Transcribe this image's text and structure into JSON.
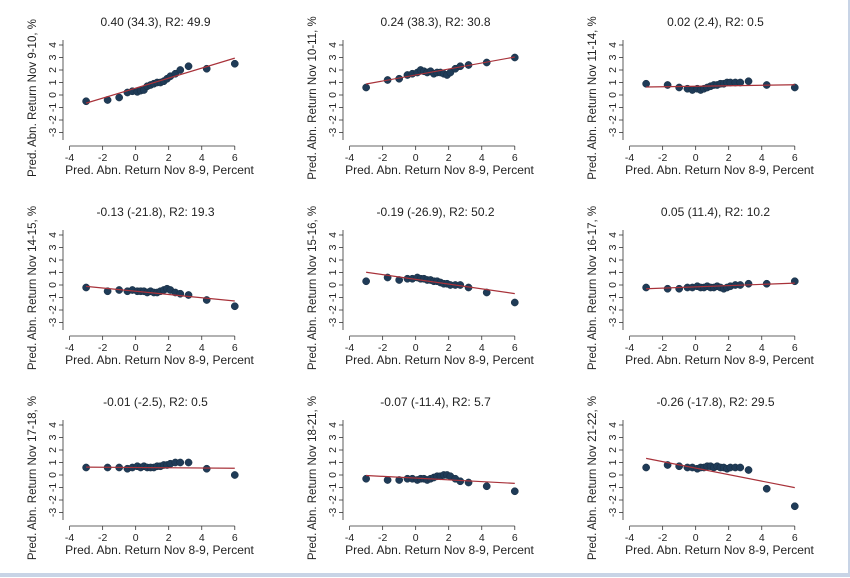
{
  "figure": {
    "xlabel": "Pred. Abn. Return Nov 8-9, Percent",
    "xticks": [
      -4,
      -2,
      0,
      2,
      4,
      6
    ],
    "yticks": [
      -3,
      -2,
      -1,
      0,
      1,
      2,
      3,
      4
    ],
    "xlim": [
      -4.4,
      6.8
    ],
    "ylim": [
      -3.6,
      4.4
    ],
    "colors": {
      "points": "#1f3b57",
      "fit_line": "#a8323a",
      "axes": "#333333"
    }
  },
  "chart_data": [
    {
      "type": "scatter",
      "title": "0.40 (34.3), R2: 49.9",
      "ylabel": "Pred. Abn. Return Nov 9-10, %",
      "fit": {
        "slope": 0.4,
        "intercept": 0.55
      },
      "x": [
        -3.0,
        -1.7,
        -1.0,
        -0.5,
        -0.2,
        0.1,
        0.3,
        0.5,
        0.7,
        0.9,
        1.1,
        1.3,
        1.5,
        1.7,
        1.9,
        2.1,
        2.4,
        2.7,
        3.2,
        4.3,
        6.0
      ],
      "y": [
        -0.5,
        -0.4,
        -0.2,
        0.2,
        0.3,
        0.25,
        0.35,
        0.4,
        0.7,
        0.8,
        0.9,
        1.0,
        1.0,
        1.1,
        1.3,
        1.5,
        1.7,
        2.0,
        2.3,
        2.1,
        2.5
      ]
    },
    {
      "type": "scatter",
      "title": "0.24 (38.3), R2: 30.8",
      "ylabel": "Pred. Abn. Return Nov 10-11, %",
      "fit": {
        "slope": 0.24,
        "intercept": 1.6
      },
      "x": [
        -3.0,
        -1.7,
        -1.0,
        -0.5,
        -0.2,
        0.1,
        0.3,
        0.5,
        0.7,
        0.9,
        1.1,
        1.3,
        1.5,
        1.7,
        1.9,
        2.1,
        2.4,
        2.7,
        3.2,
        4.3,
        6.0
      ],
      "y": [
        0.6,
        1.2,
        1.3,
        1.6,
        1.7,
        1.8,
        2.0,
        1.9,
        1.8,
        1.9,
        1.7,
        1.8,
        1.8,
        1.7,
        1.6,
        1.8,
        2.1,
        2.3,
        2.4,
        2.6,
        3.0
      ]
    },
    {
      "type": "scatter",
      "title": "0.02 (2.4), R2: 0.5",
      "ylabel": "Pred. Abn. Return Nov 11-14, %",
      "fit": {
        "slope": 0.02,
        "intercept": 0.7
      },
      "x": [
        -3.0,
        -1.7,
        -1.0,
        -0.5,
        -0.2,
        0.1,
        0.3,
        0.5,
        0.7,
        0.9,
        1.1,
        1.3,
        1.5,
        1.7,
        1.9,
        2.1,
        2.4,
        2.7,
        3.2,
        4.3,
        6.0
      ],
      "y": [
        0.9,
        0.8,
        0.6,
        0.5,
        0.4,
        0.5,
        0.4,
        0.5,
        0.6,
        0.7,
        0.8,
        0.8,
        0.9,
        0.9,
        1.0,
        1.0,
        1.0,
        1.0,
        1.1,
        0.8,
        0.6
      ]
    },
    {
      "type": "scatter",
      "title": "-0.13 (-21.8), R2: 19.3",
      "ylabel": "Pred. Abn. Return Nov 14-15, %",
      "fit": {
        "slope": -0.13,
        "intercept": -0.5
      },
      "x": [
        -3.0,
        -1.7,
        -1.0,
        -0.5,
        -0.2,
        0.1,
        0.3,
        0.5,
        0.7,
        0.9,
        1.1,
        1.3,
        1.5,
        1.7,
        1.9,
        2.1,
        2.4,
        2.7,
        3.2,
        4.3,
        6.0
      ],
      "y": [
        -0.2,
        -0.5,
        -0.4,
        -0.5,
        -0.4,
        -0.5,
        -0.5,
        -0.5,
        -0.6,
        -0.5,
        -0.6,
        -0.6,
        -0.5,
        -0.4,
        -0.3,
        -0.4,
        -0.6,
        -0.7,
        -0.8,
        -1.2,
        -1.7
      ]
    },
    {
      "type": "scatter",
      "title": "-0.19 (-26.9), R2: 50.2",
      "ylabel": "Pred. Abn. Return Nov 15-16, %",
      "fit": {
        "slope": -0.19,
        "intercept": 0.45
      },
      "x": [
        -3.0,
        -1.7,
        -1.0,
        -0.5,
        -0.2,
        0.1,
        0.3,
        0.5,
        0.7,
        0.9,
        1.1,
        1.3,
        1.5,
        1.7,
        1.9,
        2.1,
        2.4,
        2.7,
        3.2,
        4.3,
        6.0
      ],
      "y": [
        0.3,
        0.6,
        0.4,
        0.5,
        0.5,
        0.6,
        0.5,
        0.5,
        0.4,
        0.4,
        0.3,
        0.3,
        0.2,
        0.1,
        0.1,
        0.0,
        0.0,
        0.0,
        -0.2,
        -0.6,
        -1.4
      ]
    },
    {
      "type": "scatter",
      "title": "0.05 (11.4), R2: 10.2",
      "ylabel": "Pred. Abn. Return Nov 16-17, %",
      "fit": {
        "slope": 0.05,
        "intercept": -0.15
      },
      "x": [
        -3.0,
        -1.7,
        -1.0,
        -0.5,
        -0.2,
        0.1,
        0.3,
        0.5,
        0.7,
        0.9,
        1.1,
        1.3,
        1.5,
        1.7,
        1.9,
        2.1,
        2.4,
        2.7,
        3.2,
        4.3,
        6.0
      ],
      "y": [
        -0.2,
        -0.3,
        -0.3,
        -0.2,
        -0.2,
        -0.1,
        -0.2,
        -0.2,
        -0.1,
        -0.2,
        -0.2,
        -0.1,
        -0.2,
        -0.3,
        -0.2,
        -0.1,
        0.0,
        0.0,
        0.1,
        0.1,
        0.3
      ]
    },
    {
      "type": "scatter",
      "title": "-0.01 (-2.5), R2: 0.5",
      "ylabel": "Pred. Abn. Return Nov 17-18, %",
      "fit": {
        "slope": -0.01,
        "intercept": 0.6
      },
      "x": [
        -3.0,
        -1.7,
        -1.0,
        -0.5,
        -0.2,
        0.1,
        0.3,
        0.5,
        0.7,
        0.9,
        1.1,
        1.3,
        1.5,
        1.7,
        1.9,
        2.1,
        2.4,
        2.7,
        3.2,
        4.3,
        6.0
      ],
      "y": [
        0.6,
        0.6,
        0.6,
        0.5,
        0.6,
        0.7,
        0.6,
        0.7,
        0.6,
        0.6,
        0.6,
        0.7,
        0.7,
        0.8,
        0.8,
        0.9,
        1.0,
        1.0,
        1.0,
        0.5,
        0.0
      ]
    },
    {
      "type": "scatter",
      "title": "-0.07 (-11.4), R2: 5.7",
      "ylabel": "Pred. Abn. Return Nov 18-21, %",
      "fit": {
        "slope": -0.07,
        "intercept": -0.25
      },
      "x": [
        -3.0,
        -1.7,
        -1.0,
        -0.5,
        -0.2,
        0.1,
        0.3,
        0.5,
        0.7,
        0.9,
        1.1,
        1.3,
        1.5,
        1.7,
        1.9,
        2.1,
        2.4,
        2.7,
        3.2,
        4.3,
        6.0
      ],
      "y": [
        -0.3,
        -0.4,
        -0.4,
        -0.3,
        -0.3,
        -0.4,
        -0.3,
        -0.3,
        -0.4,
        -0.3,
        -0.2,
        -0.1,
        -0.1,
        0.0,
        0.0,
        -0.1,
        -0.3,
        -0.5,
        -0.6,
        -0.9,
        -1.3
      ]
    },
    {
      "type": "scatter",
      "title": "-0.26 (-17.8), R2: 29.5",
      "ylabel": "Pred. Abn. Return Nov 21-22, %",
      "fit": {
        "slope": -0.26,
        "intercept": 0.55
      },
      "x": [
        -3.0,
        -1.7,
        -1.0,
        -0.5,
        -0.2,
        0.1,
        0.3,
        0.5,
        0.7,
        0.9,
        1.1,
        1.3,
        1.5,
        1.7,
        1.9,
        2.1,
        2.4,
        2.7,
        3.2,
        4.3,
        6.0
      ],
      "y": [
        0.6,
        0.8,
        0.7,
        0.6,
        0.6,
        0.5,
        0.6,
        0.6,
        0.7,
        0.7,
        0.6,
        0.7,
        0.6,
        0.6,
        0.5,
        0.6,
        0.6,
        0.6,
        0.4,
        -1.1,
        -2.5
      ]
    }
  ]
}
